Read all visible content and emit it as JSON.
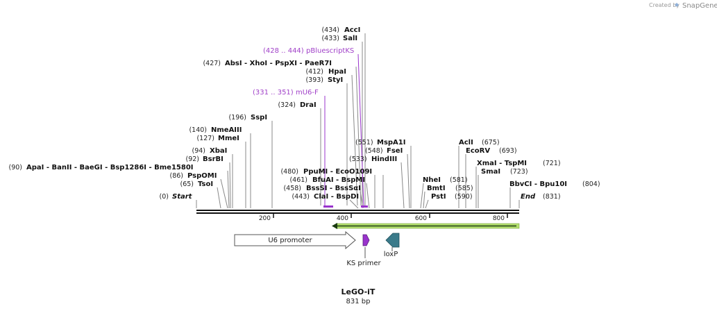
{
  "watermark": {
    "prefix": "Created by",
    "brand": "SnapGene"
  },
  "title": "LeGO-iT",
  "length_label": "831 bp",
  "colors": {
    "line": "#888888",
    "primer": "#9933cc",
    "backbone": "#111111",
    "green": "#b4e070",
    "arrow_dark": "#3a7a7a"
  },
  "sequence_length": 831,
  "ticks": [
    {
      "value": 200,
      "label": "200"
    },
    {
      "value": 400,
      "label": "400"
    },
    {
      "value": 600,
      "label": "600"
    },
    {
      "value": 800,
      "label": "800"
    }
  ],
  "start_label": {
    "pos": "(0)",
    "name": "Start"
  },
  "end_label": {
    "name": "End",
    "pos": "(831)"
  },
  "enzymes_left": [
    {
      "pos": "(434)",
      "name": "AccI"
    },
    {
      "pos": "(433)",
      "name": "SalI"
    },
    {
      "pos": "(427)",
      "name": "AbsI - XhoI - PspXI - PaeR7I"
    },
    {
      "pos": "(412)",
      "name": "HpaI"
    },
    {
      "pos": "(393)",
      "name": "StyI"
    },
    {
      "pos": "(324)",
      "name": "DraI"
    },
    {
      "pos": "(196)",
      "name": "SspI"
    },
    {
      "pos": "(140)",
      "name": "NmeAIII"
    },
    {
      "pos": "(127)",
      "name": "MmeI"
    },
    {
      "pos": "(94)",
      "name": "XbaI"
    },
    {
      "pos": "(92)",
      "name": "BsrBI"
    },
    {
      "pos": "(90)",
      "name": "ApaI - BanII - BaeGI - Bsp1286I - Bme1580I"
    },
    {
      "pos": "(86)",
      "name": "PspOMI"
    },
    {
      "pos": "(65)",
      "name": "TsoI"
    },
    {
      "pos": "(480)",
      "name": "PpuMI - EcoO109I"
    },
    {
      "pos": "(461)",
      "name": "BfuAI - BspMI"
    },
    {
      "pos": "(458)",
      "name": "BssSI - BssSαI"
    },
    {
      "pos": "(443)",
      "name": "ClaI - BspDI"
    }
  ],
  "enzymes_right": [
    {
      "pos": "(551)",
      "name": "MspA1I"
    },
    {
      "pos": "(548)",
      "name": "FseI"
    },
    {
      "pos": "(533)",
      "name": "HindIII"
    },
    {
      "pos": "(581)",
      "name": "NheI"
    },
    {
      "pos": "(585)",
      "name": "BmtI"
    },
    {
      "pos": "(590)",
      "name": "PstI"
    },
    {
      "pos": "(675)",
      "name": "AclI"
    },
    {
      "pos": "(693)",
      "name": "EcoRV"
    },
    {
      "pos": "(721)",
      "name": "XmaI - TspMI"
    },
    {
      "pos": "(723)",
      "name": "SmaI"
    },
    {
      "pos": "(804)",
      "name": "BbvCI - Bpu10I"
    }
  ],
  "primers": [
    {
      "range": "(428 .. 444)",
      "name": "pBluescriptKS"
    },
    {
      "range": "(331 .. 351)",
      "name": "mU6-F"
    }
  ],
  "features": {
    "u6": "U6 promoter",
    "ks": "KS primer",
    "loxp": "loxP"
  }
}
